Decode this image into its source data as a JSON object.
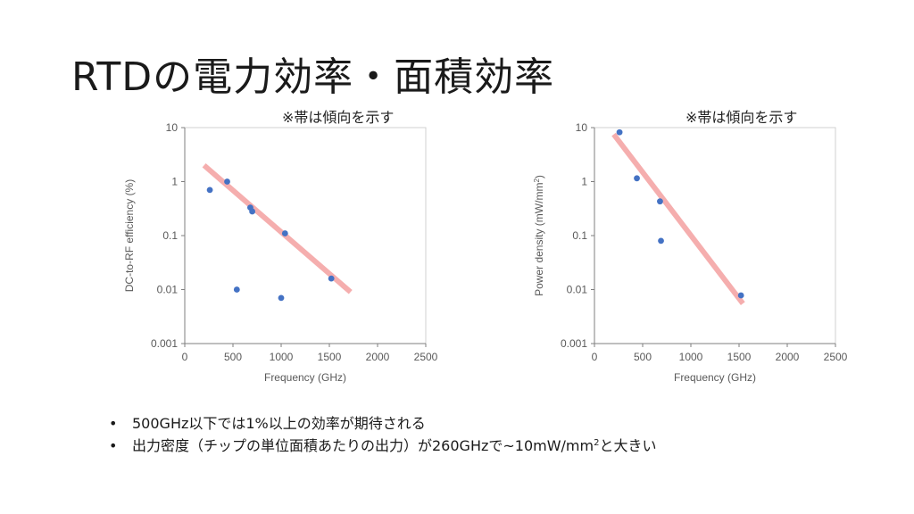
{
  "title": "RTDの電力効率・面積効率",
  "bullets": [
    {
      "pre": "500GHz以下では1%以上の効率が期待される",
      "sup": "",
      "post": ""
    },
    {
      "pre": "出力密度（チップの単位面積あたりの出力）が260GHzで~10mW/mm",
      "sup": "2",
      "post": "と大きい"
    }
  ],
  "chart_data": [
    {
      "type": "scatter",
      "note": "※帯は傾向を示す",
      "xlabel": "Frequency (GHz)",
      "ylabel": "DC-to-RF efficiency (%)",
      "ylabel_sup": "",
      "ylabel_post": "",
      "x_scale": "linear",
      "y_scale": "log",
      "xlim": [
        0,
        2500
      ],
      "ylim": [
        0.001,
        10
      ],
      "x_ticks": [
        0,
        500,
        1000,
        1500,
        2000,
        2500
      ],
      "y_ticks": [
        0.001,
        0.01,
        0.1,
        1,
        10
      ],
      "y_tick_labels": [
        "0.001",
        "0.01",
        "0.1",
        "1",
        "10"
      ],
      "points": [
        {
          "x": 260,
          "y": 0.7
        },
        {
          "x": 440,
          "y": 1.0
        },
        {
          "x": 540,
          "y": 0.01
        },
        {
          "x": 680,
          "y": 0.33
        },
        {
          "x": 700,
          "y": 0.28
        },
        {
          "x": 1000,
          "y": 0.007
        },
        {
          "x": 1040,
          "y": 0.11
        },
        {
          "x": 1520,
          "y": 0.016
        }
      ],
      "trend_band": {
        "x": [
          200,
          1720
        ],
        "y": [
          2.0,
          0.009
        ]
      },
      "point_color": "#4472C4",
      "band_color": "#F4A6A6"
    },
    {
      "type": "scatter",
      "note": "※帯は傾向を示す",
      "xlabel": "Frequency (GHz)",
      "ylabel": "Power density (mW/mm",
      "ylabel_sup": "2",
      "ylabel_post": ")",
      "x_scale": "linear",
      "y_scale": "log",
      "xlim": [
        0,
        2500
      ],
      "ylim": [
        0.001,
        10
      ],
      "x_ticks": [
        0,
        500,
        1000,
        1500,
        2000,
        2500
      ],
      "y_ticks": [
        0.001,
        0.01,
        0.1,
        1,
        10
      ],
      "y_tick_labels": [
        "0.001",
        "0.01",
        "0.1",
        "1",
        "10"
      ],
      "points": [
        {
          "x": 260,
          "y": 8.2
        },
        {
          "x": 440,
          "y": 1.15
        },
        {
          "x": 680,
          "y": 0.43
        },
        {
          "x": 690,
          "y": 0.08
        },
        {
          "x": 1520,
          "y": 0.0078
        }
      ],
      "trend_band": {
        "x": [
          200,
          1540
        ],
        "y": [
          7.5,
          0.0055
        ]
      },
      "point_color": "#4472C4",
      "band_color": "#F4A6A6"
    }
  ]
}
